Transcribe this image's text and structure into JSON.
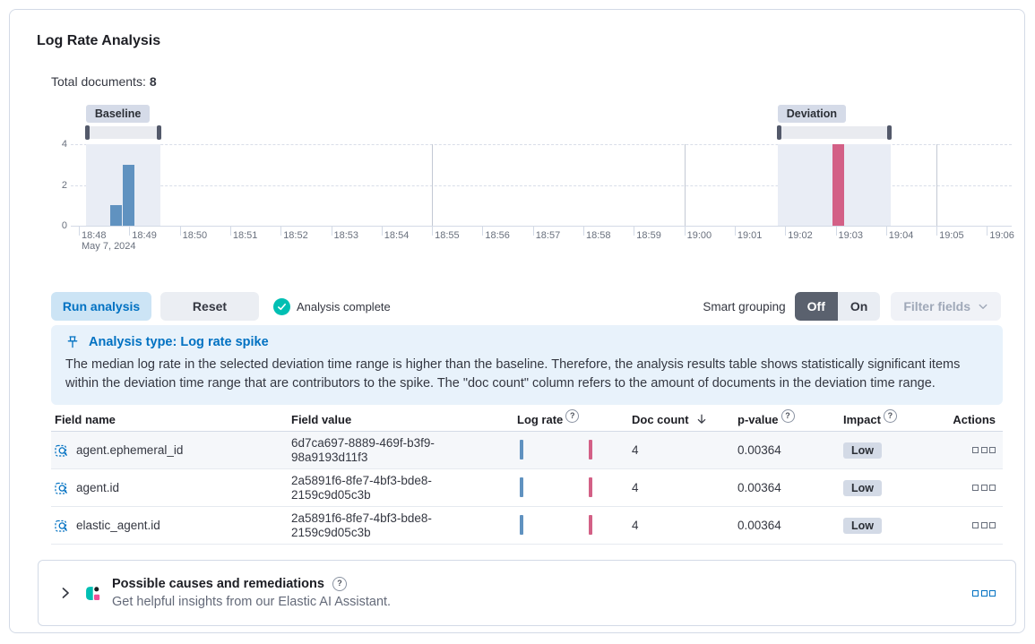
{
  "app": {
    "title": "Log Rate Analysis"
  },
  "summary": {
    "total_documents_label": "Total documents:",
    "total_documents_value": "8"
  },
  "icons": {
    "help_glyph": "?"
  },
  "chart_data": {
    "type": "bar",
    "title": "Log rate histogram with baseline and deviation brushes",
    "xlabel": "",
    "ylabel": "",
    "ylim": [
      0,
      4
    ],
    "y_ticks": [
      4,
      2,
      0
    ],
    "x_ticks": [
      "18:48",
      "18:49",
      "18:50",
      "18:51",
      "18:52",
      "18:53",
      "18:54",
      "18:55",
      "18:56",
      "18:57",
      "18:58",
      "18:59",
      "19:00",
      "19:01",
      "19:02",
      "19:03",
      "19:04",
      "19:05",
      "19:06"
    ],
    "x_date_label": "May 7, 2024",
    "vertical_gridlines_t": [
      7,
      12,
      17
    ],
    "bars": [
      {
        "time": "18:48:45",
        "t": 0.74,
        "count": 1,
        "series": "baseline"
      },
      {
        "time": "18:49:00",
        "t": 0.98,
        "count": 3,
        "series": "baseline"
      },
      {
        "time": "19:03:10",
        "t": 15.05,
        "count": 4,
        "series": "deviation"
      }
    ],
    "brushes": [
      {
        "label": "Baseline",
        "from_t": 0.14,
        "to_t": 1.62
      },
      {
        "label": "Deviation",
        "from_t": 13.85,
        "to_t": 16.1
      }
    ],
    "colors": {
      "baseline_bar": "#6092C0",
      "deviation_bar": "#D36086",
      "band": "#E9EDF5"
    }
  },
  "controls": {
    "run_analysis": "Run analysis",
    "reset": "Reset",
    "status": "Analysis complete",
    "smart_grouping_label": "Smart grouping",
    "toggle_off": "Off",
    "toggle_on": "On",
    "filter_fields": "Filter fields"
  },
  "callout": {
    "title": "Analysis type: Log rate spike",
    "body": "The median log rate in the selected deviation time range is higher than the baseline. Therefore, the analysis results table shows statistically significant items within the deviation time range that are contributors to the spike. The \"doc count\" column refers to the amount of documents in the deviation time range."
  },
  "table": {
    "columns": [
      "Field name",
      "Field value",
      "Log rate",
      "Doc count",
      "p-value",
      "Impact",
      "Actions"
    ],
    "rows": [
      {
        "field_name": "agent.ephemeral_id",
        "field_value": "6d7ca697-8889-469f-b3f9-98a9193d11f3",
        "doc_count": "4",
        "p_value": "0.00364",
        "impact": "Low"
      },
      {
        "field_name": "agent.id",
        "field_value": "2a5891f6-8fe7-4bf3-bde8-2159c9d05c3b",
        "doc_count": "4",
        "p_value": "0.00364",
        "impact": "Low"
      },
      {
        "field_name": "elastic_agent.id",
        "field_value": "2a5891f6-8fe7-4bf3-bde8-2159c9d05c3b",
        "doc_count": "4",
        "p_value": "0.00364",
        "impact": "Low"
      }
    ]
  },
  "footer": {
    "accordion_title": "Possible causes and remediations",
    "accordion_subtitle": "Get helpful insights from our Elastic AI Assistant."
  }
}
